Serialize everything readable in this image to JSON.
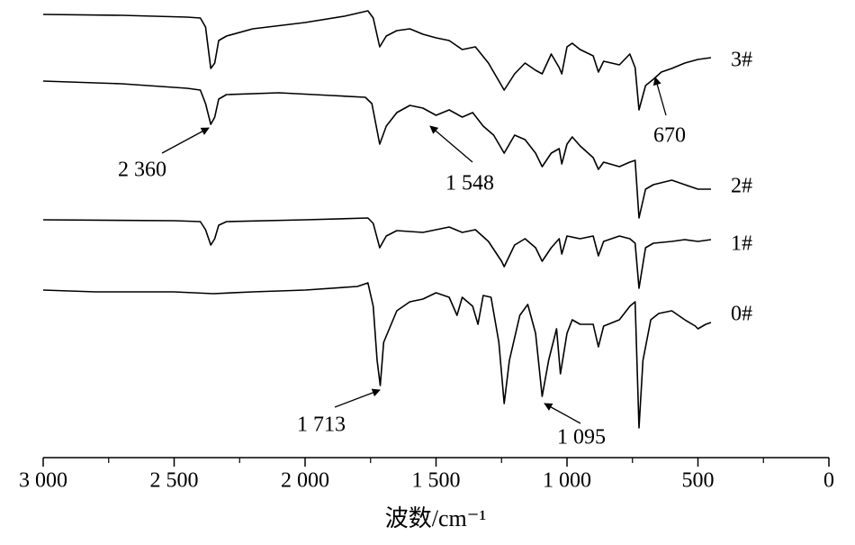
{
  "chart_data": {
    "type": "line",
    "x_label": "波数/cm⁻¹",
    "xlim": [
      3000,
      0
    ],
    "ylim": [
      0,
      100
    ],
    "xticks": [
      {
        "value": 3000,
        "label": "3 000"
      },
      {
        "value": 2500,
        "label": "2 500"
      },
      {
        "value": 2000,
        "label": "2 000"
      },
      {
        "value": 1500,
        "label": "1 500"
      },
      {
        "value": 1000,
        "label": "1 000"
      },
      500,
      0
    ],
    "xminorticks": [
      2750,
      2250,
      1750,
      1250,
      750,
      250
    ],
    "series": [
      {
        "name": "3#",
        "color": "#000000",
        "x": [
          3000,
          2700,
          2450,
          2400,
          2380,
          2360,
          2345,
          2330,
          2300,
          2200,
          2000,
          1850,
          1760,
          1740,
          1715,
          1690,
          1650,
          1600,
          1550,
          1500,
          1450,
          1400,
          1350,
          1300,
          1250,
          1240,
          1200,
          1160,
          1120,
          1095,
          1060,
          1030,
          1020,
          1000,
          980,
          950,
          900,
          880,
          860,
          800,
          760,
          740,
          725,
          700,
          670,
          640,
          600,
          550,
          500,
          450
        ],
        "values": [
          98.4,
          98.2,
          97.8,
          97.6,
          95.6,
          86.4,
          87.6,
          92.6,
          93.6,
          95.2,
          96.6,
          98,
          99.2,
          97.6,
          91.2,
          93.6,
          94.8,
          95.2,
          94,
          93.2,
          92.6,
          90.6,
          91.2,
          87.6,
          82.6,
          81.6,
          85.2,
          87.6,
          86,
          85.2,
          89.6,
          86.6,
          85.2,
          91.2,
          92,
          90.6,
          89.2,
          85.6,
          88,
          87.2,
          89.6,
          86.6,
          77.2,
          82.6,
          84,
          85.6,
          86.4,
          87.6,
          88.4,
          88.8
        ]
      },
      {
        "name": "2#",
        "color": "#000000",
        "x": [
          3000,
          2700,
          2450,
          2400,
          2380,
          2360,
          2345,
          2330,
          2300,
          2100,
          1900,
          1770,
          1745,
          1715,
          1690,
          1650,
          1600,
          1550,
          1500,
          1450,
          1400,
          1360,
          1320,
          1280,
          1250,
          1240,
          1200,
          1160,
          1120,
          1095,
          1060,
          1030,
          1020,
          1000,
          980,
          950,
          900,
          880,
          860,
          800,
          760,
          740,
          725,
          700,
          670,
          600,
          550,
          500,
          450
        ],
        "values": [
          83.6,
          83,
          82,
          81.6,
          78.6,
          74,
          75.6,
          79.6,
          80.6,
          81,
          80.4,
          80,
          78.6,
          69.6,
          73.6,
          76.6,
          78.2,
          77.6,
          76,
          77.2,
          75.6,
          76.6,
          73.6,
          71.6,
          68.6,
          67.6,
          71.6,
          70.6,
          67.6,
          64.6,
          67.6,
          68.6,
          65.2,
          69.6,
          71.2,
          69.2,
          66.6,
          64,
          65.6,
          64.6,
          65.6,
          66,
          53.2,
          59.6,
          60.6,
          61.6,
          60.6,
          59.6,
          59.6
        ]
      },
      {
        "name": "1#",
        "color": "#000000",
        "x": [
          3000,
          2500,
          2400,
          2380,
          2360,
          2345,
          2330,
          2300,
          2000,
          1760,
          1740,
          1715,
          1690,
          1650,
          1550,
          1500,
          1450,
          1400,
          1350,
          1300,
          1250,
          1240,
          1200,
          1160,
          1120,
          1095,
          1060,
          1030,
          1020,
          1000,
          950,
          900,
          880,
          860,
          800,
          760,
          740,
          725,
          700,
          670,
          600,
          550,
          500,
          450
        ],
        "values": [
          52.8,
          52.6,
          52.4,
          50.6,
          47.2,
          48.6,
          51.6,
          52.4,
          52.8,
          53.2,
          52,
          46.6,
          49.2,
          50.4,
          50,
          50.6,
          51.2,
          50,
          50.6,
          48,
          43.6,
          42.4,
          47.2,
          48.6,
          46.6,
          43.6,
          46.6,
          48.6,
          45.2,
          49.2,
          48.6,
          49.2,
          44.8,
          48,
          49.2,
          48.6,
          47.6,
          37.6,
          46.6,
          47.6,
          48,
          48.4,
          48,
          48.4
        ]
      },
      {
        "name": "0#",
        "color": "#000000",
        "x": [
          3000,
          2800,
          2500,
          2350,
          2200,
          2000,
          1800,
          1760,
          1740,
          1725,
          1713,
          1700,
          1650,
          1600,
          1550,
          1500,
          1450,
          1420,
          1400,
          1360,
          1340,
          1320,
          1290,
          1260,
          1240,
          1220,
          1180,
          1150,
          1120,
          1095,
          1070,
          1040,
          1025,
          1000,
          980,
          950,
          900,
          880,
          860,
          800,
          760,
          740,
          725,
          710,
          680,
          650,
          600,
          550,
          510,
          500,
          470,
          450
        ],
        "values": [
          37.2,
          36.8,
          36.8,
          36.4,
          36.8,
          37.2,
          38,
          38.8,
          33.6,
          21.6,
          16,
          25.6,
          32.6,
          34.6,
          35.2,
          36.6,
          35.6,
          31.6,
          35.6,
          33.6,
          29.6,
          36,
          35.6,
          25.6,
          12,
          21.6,
          31.6,
          34,
          27.6,
          13.6,
          21.6,
          28.6,
          18.6,
          27.6,
          30.6,
          29.6,
          29.6,
          24.6,
          29.2,
          30.6,
          33.6,
          34.6,
          6.6,
          21.6,
          30.6,
          32,
          32.6,
          30.6,
          29.2,
          28.6,
          29.6,
          30
        ]
      }
    ],
    "annotations": [
      "2 360",
      "1 548",
      "670",
      "1 713",
      "1 095"
    ]
  }
}
